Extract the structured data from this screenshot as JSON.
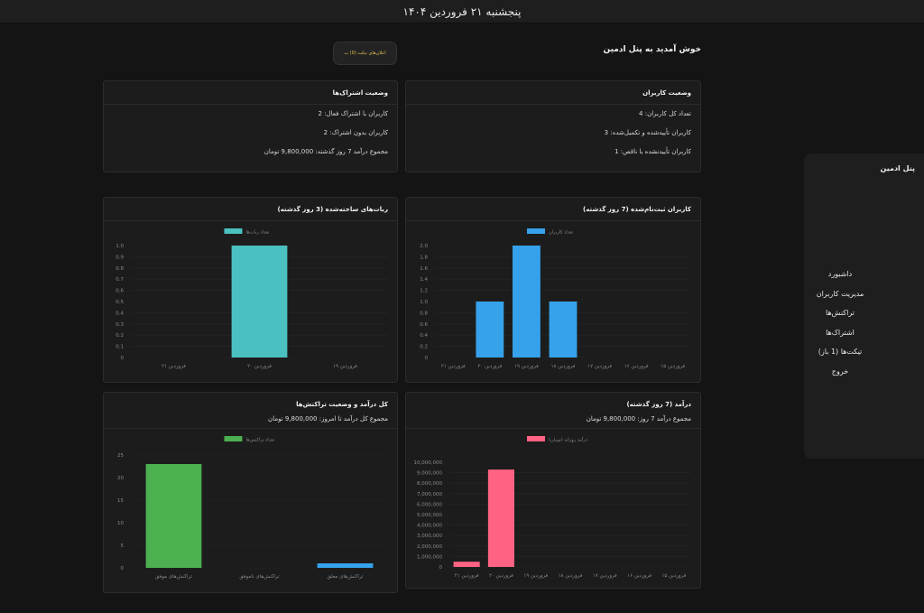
{
  "header": {
    "date": "پنجشنبه ۲۱ فروردین ۱۴۰۴"
  },
  "welcome": "خوش آمدید به پنل ادمین",
  "notif_button": "اعلان‌های تیکت (0) ب",
  "users_card": {
    "title": "وضعیت کاربران",
    "lines": [
      "تعداد کل کاربران: 4",
      "کاربران تأییدشده و تکمیل‌شده: 3",
      "کاربران تأییدنشده یا ناقص: 1"
    ]
  },
  "subs_card": {
    "title": "وضعیت اشتراک‌ها",
    "lines": [
      "کاربران با اشتراک فعال: 2",
      "کاربران بدون اشتراک: 2",
      "مجموع درآمد 7 روز گذشته: 9,800,000 تومان"
    ]
  },
  "sidebar": {
    "title": "پنل ادمین",
    "items": [
      "داشبورد",
      "مدیریت کاربران",
      "تراکنش‌ها",
      "اشتراک‌ها",
      "تیکت‌ها (1 باز)",
      "خروج"
    ]
  },
  "charts": {
    "registered": {
      "title": "کاربران ثبت‌نام‌شده (7 روز گذشته)"
    },
    "bots": {
      "title": "ربات‌های ساخته‌شده (3 روز گذشته)"
    },
    "revenue": {
      "title": "درآمد (7 روز گذشته)",
      "subtitle": "مجموع درآمد 7 روز: 9,800,000 تومان"
    },
    "transactions": {
      "title": "کل درآمد و وضعیت تراکنش‌ها",
      "subtitle": "مجموع کل درآمد تا امروز: 9,800,000 تومان"
    }
  },
  "chart_data": [
    {
      "id": "registered",
      "type": "bar",
      "series": [
        {
          "name": "تعداد کاربران",
          "color": "#36a2eb"
        }
      ],
      "categories": [
        "۲۱ فروردین",
        "۲۰ فروردین",
        "۱۹ فروردین",
        "۱۸ فروردین",
        "۱۷ فروردین",
        "۱۶ فروردین",
        "۱۵ فروردین"
      ],
      "values": [
        0,
        1,
        2,
        1,
        0,
        0,
        0
      ],
      "ylim": [
        0,
        2.0
      ],
      "yticks": [
        "0",
        "0.2",
        "0.4",
        "0.6",
        "0.8",
        "1.0",
        "1.2",
        "1.4",
        "1.6",
        "1.8",
        "2.0"
      ]
    },
    {
      "id": "bots",
      "type": "bar",
      "series": [
        {
          "name": "تعداد ربات‌ها",
          "color": "#4bc0c0"
        }
      ],
      "categories": [
        "۲۱ فروردین",
        "۲۰ فروردین",
        "۱۹ فروردین"
      ],
      "values": [
        0,
        1,
        0
      ],
      "ylim": [
        0,
        1.0
      ],
      "yticks": [
        "0",
        "0.1",
        "0.2",
        "0.3",
        "0.4",
        "0.5",
        "0.6",
        "0.7",
        "0.8",
        "0.9",
        "1.0"
      ]
    },
    {
      "id": "revenue",
      "type": "bar",
      "series": [
        {
          "name": "درآمد روزانه (تومان)",
          "color": "#ff6384"
        }
      ],
      "categories": [
        "۲۱ فروردین",
        "۲۰ فروردین",
        "۱۹ فروردین",
        "۱۸ فروردین",
        "۱۷ فروردین",
        "۱۶ فروردین",
        "۱۵ فروردین"
      ],
      "values": [
        500000,
        9300000,
        0,
        0,
        0,
        0,
        0
      ],
      "ylim": [
        0,
        10000000
      ],
      "yticks": [
        "0",
        "1,000,000",
        "2,000,000",
        "3,000,000",
        "4,000,000",
        "5,000,000",
        "6,000,000",
        "7,000,000",
        "8,000,000",
        "9,000,000",
        "10,000,000"
      ]
    },
    {
      "id": "transactions",
      "type": "bar",
      "series": [
        {
          "name": "تعداد تراکنش‌ها",
          "color": "#4caf50"
        }
      ],
      "categories": [
        "تراکنش‌های موفق",
        "تراکنش‌های ناموفق",
        "تراکنش‌های معلق"
      ],
      "values": [
        23,
        0,
        1
      ],
      "bar_colors": [
        "#4caf50",
        "#ff6384",
        "#36a2eb"
      ],
      "ylim": [
        0,
        25
      ],
      "yticks": [
        "0",
        "5",
        "10",
        "15",
        "20",
        "25"
      ]
    }
  ]
}
